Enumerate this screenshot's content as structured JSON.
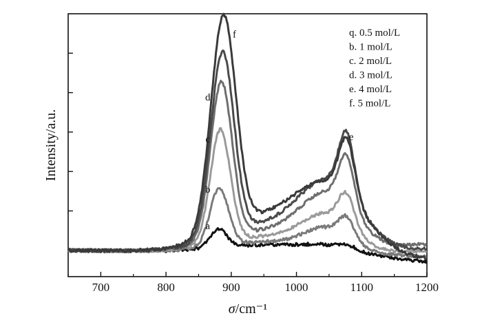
{
  "chart_data": {
    "type": "line",
    "xlabel_symbol": "σ",
    "xlabel_unit": "/cm⁻¹",
    "ylabel": "Intensity/a.u.",
    "xlim": [
      650,
      1200
    ],
    "ylim": [
      0,
      1
    ],
    "x_ticks": [
      700,
      800,
      900,
      1000,
      1100,
      1200
    ],
    "legend": [
      "q. 0.5 mol/L",
      "b. 1 mol/L",
      "c.  2 mol/L",
      "d.  3 mol/L",
      "e.  4 mol/L",
      "f.  5 mol/L"
    ],
    "legend_position": "top-right",
    "grid": false,
    "colors": {
      "a": "#111111",
      "b": "#7a7a7a",
      "c": "#9a9a9a",
      "d": "#6e6e6e",
      "e": "#4a4a4a",
      "f": "#3a3a3a"
    },
    "series": [
      {
        "id": "a",
        "baseline": 0.1,
        "peak1": 0.17,
        "peak2": 0.13,
        "valley": 0.13,
        "tail": 0.07
      },
      {
        "id": "b",
        "baseline": 0.1,
        "peak1": 0.32,
        "peak2": 0.24,
        "valley": 0.14,
        "tail": 0.09
      },
      {
        "id": "c",
        "baseline": 0.1,
        "peak1": 0.53,
        "peak2": 0.32,
        "valley": 0.16,
        "tail": 0.11
      },
      {
        "id": "d",
        "baseline": 0.1,
        "peak1": 0.7,
        "peak2": 0.45,
        "valley": 0.18,
        "tail": 0.14
      },
      {
        "id": "e",
        "baseline": 0.1,
        "peak1": 0.8,
        "peak2": 0.52,
        "valley": 0.2,
        "tail": 0.12
      },
      {
        "id": "f",
        "baseline": 0.1,
        "peak1": 0.92,
        "peak2": 0.48,
        "valley": 0.23,
        "tail": 0.08
      }
    ],
    "annotations": [
      {
        "text": "f",
        "x": 905,
        "y": 0.91
      },
      {
        "text": "d",
        "x": 864,
        "y": 0.67
      },
      {
        "text": "c",
        "x": 864,
        "y": 0.51
      },
      {
        "text": "e",
        "x": 1084,
        "y": 0.52
      },
      {
        "text": "b",
        "x": 864,
        "y": 0.32
      },
      {
        "text": "a",
        "x": 864,
        "y": 0.18
      }
    ]
  }
}
